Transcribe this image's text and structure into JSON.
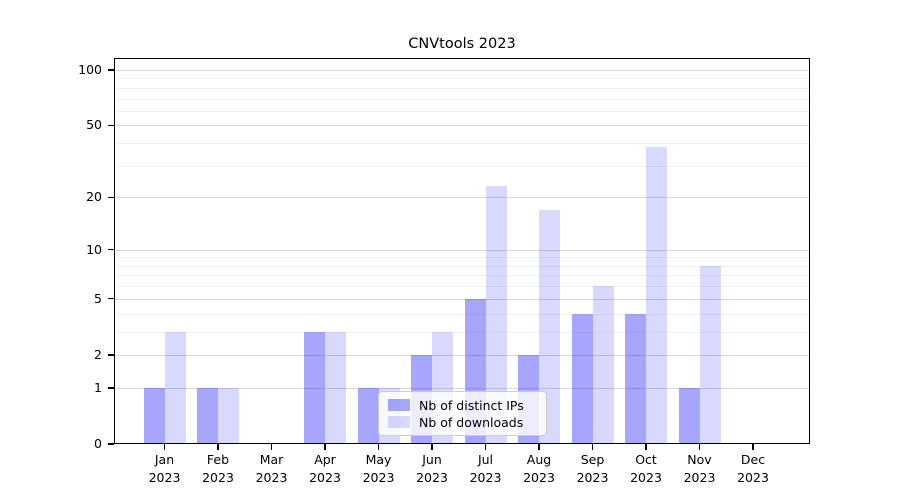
{
  "title": "CNVtools 2023",
  "chart_data": {
    "type": "bar",
    "title": "CNVtools 2023",
    "categories": [
      "Jan",
      "Feb",
      "Mar",
      "Apr",
      "May",
      "Jun",
      "Jul",
      "Aug",
      "Sep",
      "Oct",
      "Nov",
      "Dec"
    ],
    "category_year": "2023",
    "series": [
      {
        "name": "Nb of distinct IPs",
        "color": "rgba(0,0,255,0.35)",
        "values": [
          1,
          1,
          0,
          3,
          1,
          2,
          5,
          2,
          4,
          4,
          1,
          0
        ]
      },
      {
        "name": "Nb of downloads",
        "color": "rgba(0,0,255,0.15)",
        "values": [
          3,
          1,
          0,
          3,
          1,
          3,
          23,
          17,
          6,
          38,
          8,
          0
        ]
      }
    ],
    "yscale": "log1p",
    "yticks": [
      0,
      1,
      2,
      5,
      10,
      20,
      50,
      100
    ],
    "minor_yticks": [
      3,
      4,
      6,
      7,
      8,
      9,
      30,
      40,
      60,
      70,
      80,
      90
    ],
    "ylim": [
      0,
      116
    ],
    "xlabel": "",
    "ylabel": "",
    "grid": true,
    "legend_position": "lower center"
  }
}
